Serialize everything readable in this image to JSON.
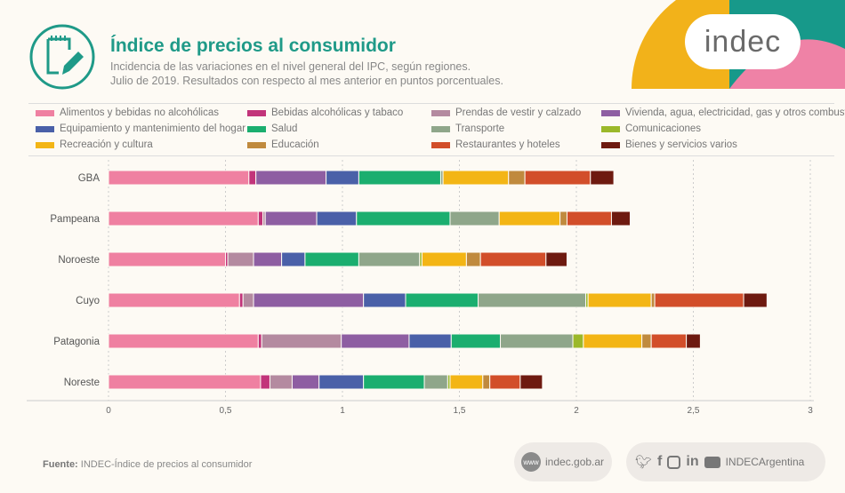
{
  "header": {
    "title": "Índice de precios al consumidor",
    "subtitle1": "Incidencia de las variaciones en el nivel general del IPC, según regiones.",
    "subtitle2": "Julio de 2019. Resultados con respecto al mes anterior en puntos porcentuales.",
    "logo": "indec"
  },
  "footer": {
    "source_label": "Fuente:",
    "source": "INDEC-Índice de precios al consumidor",
    "website": "indec.gob.ar",
    "www": "www",
    "social_handle": "INDECArgentina",
    "social_icons": [
      "twitter-icon",
      "facebook-icon",
      "instagram-icon",
      "linkedin-icon",
      "youtube-icon"
    ],
    "linkedin": "in",
    "facebook": "f"
  },
  "chart_data": {
    "type": "bar",
    "orientation": "horizontal",
    "stacked": true,
    "title": "Índice de precios al consumidor",
    "xlabel": "",
    "ylabel": "",
    "xlim": [
      0,
      3
    ],
    "xticks": [
      "0",
      "0,5",
      "1",
      "1,5",
      "2",
      "2,5",
      "3"
    ],
    "xtick_values": [
      0,
      0.5,
      1,
      1.5,
      2,
      2.5,
      3
    ],
    "grid": true,
    "legend_placement": "top",
    "categories": [
      "GBA",
      "Pampeana",
      "Noroeste",
      "Cuyo",
      "Patagonia",
      "Noreste"
    ],
    "series": [
      {
        "name": "Alimentos y bebidas no alcohólicas",
        "color": "#ef80a1",
        "values": [
          0.6,
          0.64,
          0.5,
          0.56,
          0.64,
          0.65
        ]
      },
      {
        "name": "Bebidas alcohólicas y tabaco",
        "color": "#c2347a",
        "values": [
          0.03,
          0.02,
          0.01,
          0.015,
          0.015,
          0.04
        ]
      },
      {
        "name": "Prendas de vestir y calzado",
        "color": "#b48aa0",
        "values": [
          0.0,
          0.01,
          0.11,
          0.045,
          0.34,
          0.095
        ]
      },
      {
        "name": "Vivienda, agua, electricidad, gas y otros combustibles",
        "color": "#8e5ea2",
        "values": [
          0.3,
          0.22,
          0.12,
          0.47,
          0.29,
          0.115
        ]
      },
      {
        "name": "Equipamiento y mantenimiento del hogar",
        "color": "#4a60a8",
        "values": [
          0.14,
          0.17,
          0.1,
          0.18,
          0.18,
          0.19
        ]
      },
      {
        "name": "Salud",
        "color": "#1bae6f",
        "values": [
          0.35,
          0.4,
          0.23,
          0.31,
          0.21,
          0.26
        ]
      },
      {
        "name": "Transporte",
        "color": "#8fa68a",
        "values": [
          0.01,
          0.21,
          0.26,
          0.46,
          0.31,
          0.1
        ]
      },
      {
        "name": "Comunicaciones",
        "color": "#9bb82a",
        "values": [
          0.0,
          0.0,
          0.01,
          0.01,
          0.045,
          0.01
        ]
      },
      {
        "name": "Recreación y cultura",
        "color": "#f3b515",
        "values": [
          0.28,
          0.26,
          0.19,
          0.27,
          0.25,
          0.14
        ]
      },
      {
        "name": "Educación",
        "color": "#c08a3e",
        "values": [
          0.07,
          0.03,
          0.06,
          0.015,
          0.04,
          0.03
        ]
      },
      {
        "name": "Restaurantes y hoteles",
        "color": "#d24e2a",
        "values": [
          0.28,
          0.19,
          0.28,
          0.38,
          0.15,
          0.13
        ]
      },
      {
        "name": "Bienes y servicios varios",
        "color": "#6e1a10",
        "values": [
          0.1,
          0.08,
          0.09,
          0.1,
          0.06,
          0.095
        ]
      }
    ]
  }
}
